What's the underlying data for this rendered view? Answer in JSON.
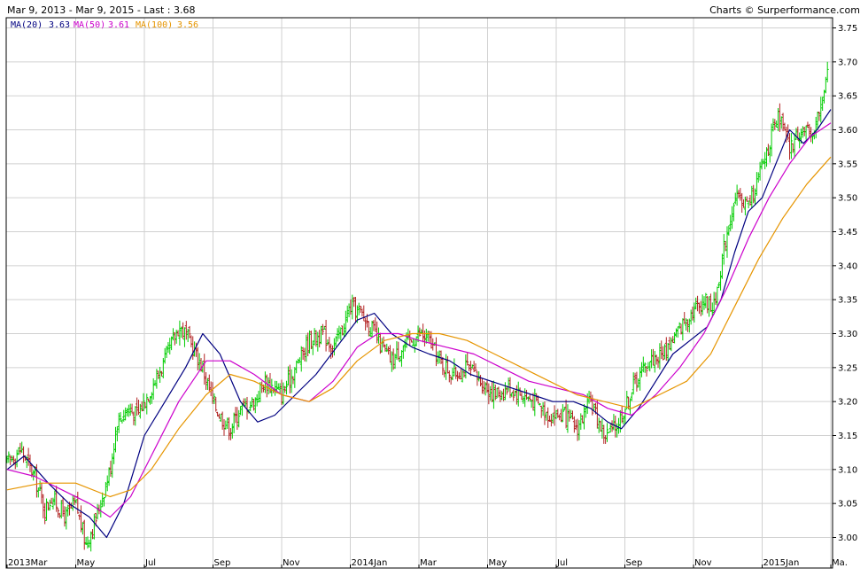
{
  "header": {
    "range_text": "Mar 9, 2013 - Mar 9, 2015 - Last : 3.68",
    "credit": "Charts © Surperformance.com"
  },
  "legend": [
    {
      "label": "MA(20)",
      "value": "3.63",
      "color": "#000080"
    },
    {
      "label": "MA(50)",
      "value": "3.61",
      "color": "#cc00cc"
    },
    {
      "label": "MA(100)",
      "value": "3.56",
      "color": "#e69500"
    }
  ],
  "colors": {
    "up_bar": "#00cc00",
    "down_bar": "#b22222",
    "grid": "#d0d0d0",
    "frame": "#000000"
  },
  "chart_data": {
    "type": "line",
    "title": "Mar 9, 2013 - Mar 9, 2015 - Last : 3.68",
    "xlabel": "",
    "ylabel": "",
    "x_tick_labels": [
      "2013Mar",
      "May",
      "Jul",
      "Sep",
      "Nov",
      "2014Jan",
      "Mar",
      "May",
      "Jul",
      "Sep",
      "Nov",
      "2015Jan",
      "Ma."
    ],
    "x_tick_months": [
      0,
      2,
      4,
      6,
      8,
      10,
      12,
      14,
      16,
      18,
      20,
      22,
      24
    ],
    "y_tick_labels": [
      "3.00",
      "3.05",
      "3.10",
      "3.15",
      "3.20",
      "3.25",
      "3.30",
      "3.35",
      "3.40",
      "3.45",
      "3.50",
      "3.55",
      "3.60",
      "3.65",
      "3.70",
      "3.75"
    ],
    "ylim": [
      2.955,
      3.765
    ],
    "xlim_months": [
      0,
      24.0
    ],
    "grid": true,
    "legend_position": "top-left",
    "price_path": {
      "x_months": [
        0,
        0.4,
        0.8,
        1.1,
        1.3,
        1.7,
        2.0,
        2.3,
        2.6,
        3.0,
        3.2,
        3.5,
        3.8,
        4.2,
        4.6,
        5.0,
        5.2,
        5.5,
        5.7,
        6.0,
        6.2,
        6.5,
        6.8,
        7.2,
        7.5,
        7.8,
        8.0,
        8.4,
        8.8,
        9.2,
        9.5,
        9.8,
        10.0,
        10.3,
        10.6,
        10.9,
        11.2,
        11.5,
        11.8,
        12.0,
        12.3,
        12.6,
        13.0,
        13.4,
        13.8,
        14.2,
        14.6,
        15.0,
        15.4,
        15.8,
        16.2,
        16.6,
        17.0,
        17.4,
        17.7,
        18.0,
        18.3,
        18.7,
        19.1,
        19.5,
        19.9,
        20.3,
        20.6,
        20.9,
        21.1,
        21.3,
        21.6,
        21.9,
        22.2,
        22.5,
        22.8,
        23.1,
        23.4,
        23.7,
        23.9
      ],
      "close": [
        3.11,
        3.13,
        3.09,
        3.04,
        3.06,
        3.03,
        3.05,
        2.99,
        3.03,
        3.1,
        3.17,
        3.19,
        3.18,
        3.22,
        3.26,
        3.31,
        3.3,
        3.27,
        3.25,
        3.2,
        3.18,
        3.16,
        3.19,
        3.2,
        3.23,
        3.22,
        3.21,
        3.25,
        3.29,
        3.3,
        3.28,
        3.31,
        3.34,
        3.33,
        3.31,
        3.28,
        3.26,
        3.28,
        3.29,
        3.3,
        3.29,
        3.26,
        3.24,
        3.25,
        3.23,
        3.21,
        3.22,
        3.21,
        3.2,
        3.18,
        3.18,
        3.16,
        3.2,
        3.15,
        3.16,
        3.19,
        3.23,
        3.26,
        3.27,
        3.3,
        3.33,
        3.35,
        3.34,
        3.43,
        3.48,
        3.5,
        3.49,
        3.53,
        3.58,
        3.62,
        3.57,
        3.6,
        3.59,
        3.63,
        3.68
      ]
    },
    "series": [
      {
        "name": "MA(20)",
        "last": 3.63,
        "x_months": [
          0,
          0.5,
          1.2,
          1.8,
          2.4,
          2.9,
          3.4,
          4.0,
          4.6,
          5.2,
          5.7,
          6.2,
          6.8,
          7.3,
          7.8,
          8.4,
          9.0,
          9.6,
          10.2,
          10.7,
          11.2,
          11.8,
          12.3,
          12.9,
          13.5,
          14.1,
          14.7,
          15.3,
          15.9,
          16.5,
          17.0,
          17.5,
          17.9,
          18.4,
          18.9,
          19.4,
          19.9,
          20.4,
          20.8,
          21.2,
          21.6,
          22.0,
          22.4,
          22.8,
          23.2,
          23.6,
          24.0
        ],
        "values": [
          3.1,
          3.12,
          3.08,
          3.05,
          3.03,
          3.0,
          3.05,
          3.15,
          3.2,
          3.25,
          3.3,
          3.27,
          3.2,
          3.17,
          3.18,
          3.21,
          3.24,
          3.28,
          3.32,
          3.33,
          3.3,
          3.28,
          3.27,
          3.26,
          3.24,
          3.23,
          3.22,
          3.21,
          3.2,
          3.2,
          3.19,
          3.17,
          3.16,
          3.19,
          3.23,
          3.27,
          3.29,
          3.31,
          3.35,
          3.42,
          3.48,
          3.5,
          3.55,
          3.6,
          3.58,
          3.6,
          3.63
        ]
      },
      {
        "name": "MA(50)",
        "last": 3.61,
        "x_months": [
          0,
          0.8,
          1.6,
          2.4,
          3.0,
          3.6,
          4.2,
          5.0,
          5.8,
          6.5,
          7.2,
          8.0,
          8.8,
          9.5,
          10.2,
          10.8,
          11.4,
          12.0,
          12.8,
          13.6,
          14.4,
          15.2,
          16.0,
          16.8,
          17.5,
          18.2,
          18.9,
          19.6,
          20.3,
          21.0,
          21.6,
          22.2,
          22.8,
          23.4,
          24.0
        ],
        "values": [
          3.1,
          3.09,
          3.07,
          3.05,
          3.03,
          3.06,
          3.12,
          3.2,
          3.26,
          3.26,
          3.24,
          3.21,
          3.2,
          3.23,
          3.28,
          3.3,
          3.3,
          3.29,
          3.28,
          3.27,
          3.25,
          3.23,
          3.22,
          3.21,
          3.19,
          3.18,
          3.21,
          3.25,
          3.3,
          3.37,
          3.44,
          3.5,
          3.55,
          3.59,
          3.61
        ]
      },
      {
        "name": "MA(100)",
        "last": 3.56,
        "x_months": [
          0,
          1.0,
          2.0,
          3.0,
          3.6,
          4.2,
          5.0,
          5.8,
          6.5,
          7.2,
          8.0,
          8.8,
          9.5,
          10.2,
          11.0,
          11.8,
          12.6,
          13.4,
          14.2,
          15.0,
          15.8,
          16.6,
          17.4,
          18.2,
          19.0,
          19.8,
          20.5,
          21.2,
          21.9,
          22.6,
          23.3,
          24.0
        ],
        "values": [
          3.07,
          3.08,
          3.08,
          3.06,
          3.07,
          3.1,
          3.16,
          3.21,
          3.24,
          3.23,
          3.21,
          3.2,
          3.22,
          3.26,
          3.29,
          3.3,
          3.3,
          3.29,
          3.27,
          3.25,
          3.23,
          3.21,
          3.2,
          3.19,
          3.21,
          3.23,
          3.27,
          3.34,
          3.41,
          3.47,
          3.52,
          3.56
        ]
      }
    ]
  }
}
